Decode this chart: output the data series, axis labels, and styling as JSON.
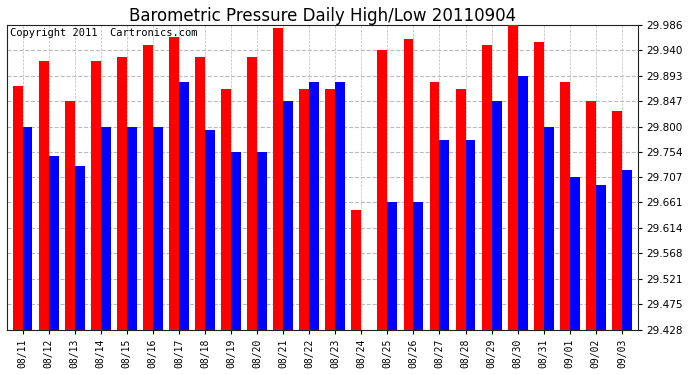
{
  "title": "Barometric Pressure Daily High/Low 20110904",
  "copyright": "Copyright 2011  Cartronics.com",
  "dates": [
    "08/11",
    "08/12",
    "08/13",
    "08/14",
    "08/15",
    "08/16",
    "08/17",
    "08/18",
    "08/19",
    "08/20",
    "08/21",
    "08/22",
    "08/23",
    "08/24",
    "08/25",
    "08/26",
    "08/27",
    "08/28",
    "08/29",
    "08/30",
    "08/31",
    "09/01",
    "09/02",
    "09/03"
  ],
  "highs": [
    29.875,
    29.921,
    29.847,
    29.921,
    29.928,
    29.95,
    29.965,
    29.928,
    29.869,
    29.928,
    29.98,
    29.869,
    29.869,
    29.647,
    29.94,
    29.96,
    29.882,
    29.869,
    29.95,
    29.986,
    29.955,
    29.882,
    29.847,
    29.828
  ],
  "lows": [
    29.8,
    29.747,
    29.728,
    29.8,
    29.8,
    29.8,
    29.882,
    29.793,
    29.754,
    29.754,
    29.847,
    29.882,
    29.882,
    29.428,
    29.661,
    29.661,
    29.775,
    29.775,
    29.847,
    29.893,
    29.8,
    29.707,
    29.693,
    29.72
  ],
  "y_ticks": [
    29.428,
    29.475,
    29.521,
    29.568,
    29.614,
    29.661,
    29.707,
    29.754,
    29.8,
    29.847,
    29.893,
    29.94,
    29.986
  ],
  "ymin": 29.428,
  "ymax": 29.986,
  "high_color": "#ff0000",
  "low_color": "#0000ff",
  "bg_color": "#ffffff",
  "plot_bg_color": "#ffffff",
  "grid_color": "#bbbbbb",
  "title_fontsize": 12,
  "copyright_fontsize": 7.5,
  "bar_width": 0.38
}
